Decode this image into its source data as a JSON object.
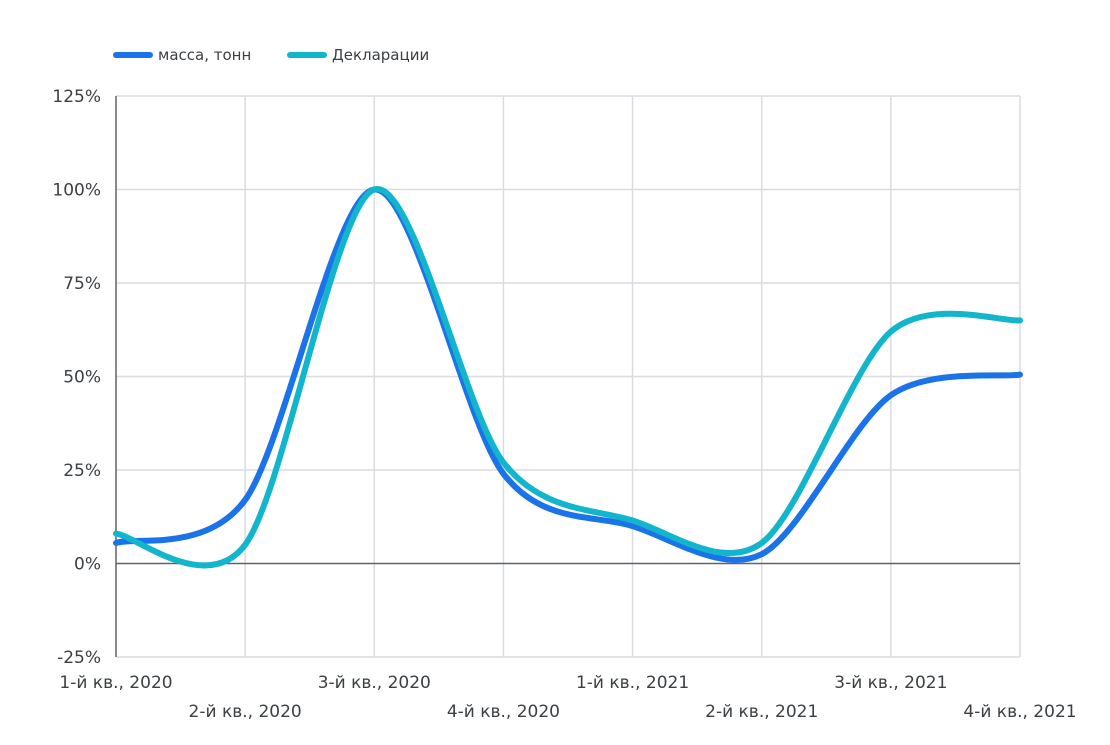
{
  "chart_data": {
    "type": "line",
    "title": "",
    "xlabel": "",
    "ylabel": "",
    "categories": [
      "1-й кв., 2020",
      "2-й кв., 2020",
      "3-й кв., 2020",
      "4-й кв., 2020",
      "1-й кв., 2021",
      "2-й кв., 2021",
      "3-й кв., 2021",
      "4-й кв., 2021"
    ],
    "y_ticks": [
      -25,
      0,
      25,
      50,
      75,
      100,
      125
    ],
    "y_tick_labels": [
      "-25%",
      "0%",
      "25%",
      "50%",
      "75%",
      "100%",
      "125%"
    ],
    "ylim": [
      -25,
      125
    ],
    "grid": true,
    "legend_position": "top-left",
    "series": [
      {
        "name": "масса, тонн",
        "color": "#1a73e8",
        "values": [
          5.5,
          17,
          100,
          24,
          10,
          2.5,
          45,
          50.5
        ]
      },
      {
        "name": "Декларации",
        "color": "#12b5cb",
        "values": [
          8,
          5,
          100,
          27,
          11.5,
          5.5,
          62,
          65
        ]
      }
    ]
  }
}
